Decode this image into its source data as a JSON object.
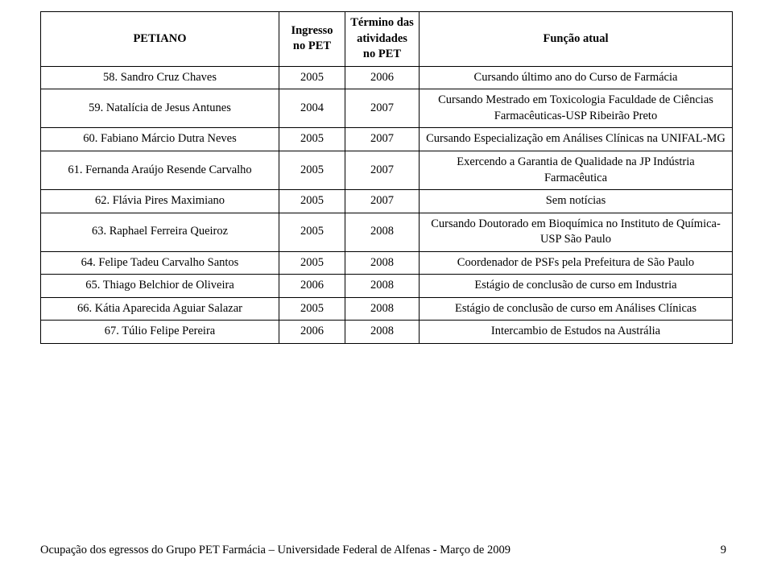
{
  "table": {
    "columns": {
      "petiano": "PETIANO",
      "ingresso": "Ingresso no PET",
      "termino": "Término das atividades no PET",
      "funcao": "Função atual"
    },
    "rows": [
      {
        "name": "58. Sandro Cruz Chaves",
        "in": "2005",
        "out": "2006",
        "func": "Cursando último ano do Curso de Farmácia"
      },
      {
        "name": "59. Natalícia de Jesus Antunes",
        "in": "2004",
        "out": "2007",
        "func": "Cursando Mestrado em Toxicologia Faculdade de Ciências Farmacêuticas-USP Ribeirão Preto"
      },
      {
        "name": "60. Fabiano Márcio Dutra Neves",
        "in": "2005",
        "out": "2007",
        "func": "Cursando Especialização em Análises Clínicas na UNIFAL-MG"
      },
      {
        "name": "61. Fernanda Araújo Resende Carvalho",
        "in": "2005",
        "out": "2007",
        "func": "Exercendo a Garantia de Qualidade na JP Indústria Farmacêutica"
      },
      {
        "name": "62. Flávia Pires Maximiano",
        "in": "2005",
        "out": "2007",
        "func": "Sem notícias"
      },
      {
        "name": "63. Raphael Ferreira Queiroz",
        "in": "2005",
        "out": "2008",
        "func": "Cursando Doutorado em Bioquímica no Instituto de Química-USP São Paulo"
      },
      {
        "name": "64. Felipe Tadeu Carvalho Santos",
        "in": "2005",
        "out": "2008",
        "func": "Coordenador de PSFs pela Prefeitura de São Paulo"
      },
      {
        "name": "65. Thiago Belchior de Oliveira",
        "in": "2006",
        "out": "2008",
        "func": "Estágio de conclusão de curso em Industria"
      },
      {
        "name": "66. Kátia Aparecida Aguiar Salazar",
        "in": "2005",
        "out": "2008",
        "func": "Estágio de conclusão de curso em Análises Clínicas"
      },
      {
        "name": "67. Túlio Felipe Pereira",
        "in": "2006",
        "out": "2008",
        "func": "Intercambio de Estudos na Austrália"
      }
    ]
  },
  "footer": {
    "text": "Ocupação dos egressos do Grupo PET Farmácia – Universidade Federal de Alfenas - Março de 2009",
    "page": "9"
  },
  "colors": {
    "text": "#000000",
    "border": "#000000",
    "background": "#ffffff"
  }
}
